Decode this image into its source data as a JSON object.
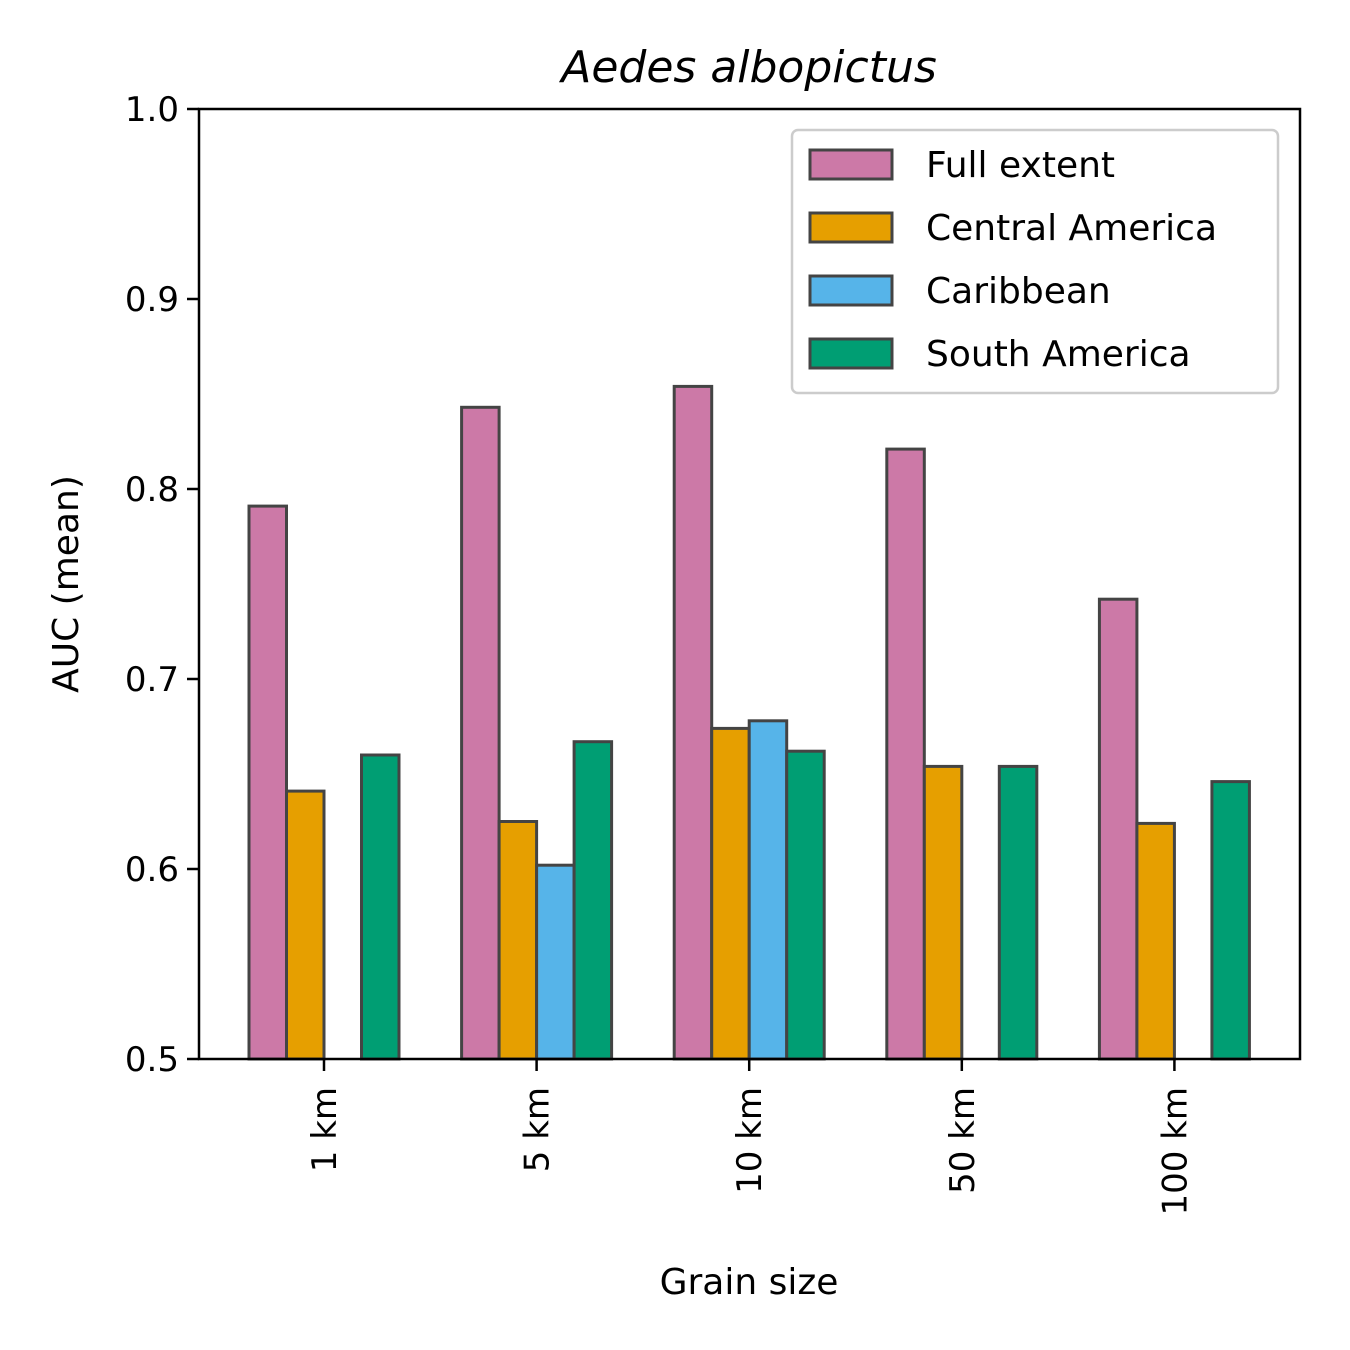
{
  "chart_data": {
    "type": "bar",
    "title": "Aedes albopictus",
    "xlabel": "Grain size",
    "ylabel": "AUC (mean)",
    "ylim": [
      0.5,
      1.0
    ],
    "yticks": [
      "0.5",
      "0.6",
      "0.7",
      "0.8",
      "0.9",
      "1.0"
    ],
    "categories": [
      "1 km",
      "5 km",
      "10 km",
      "50 km",
      "100 km"
    ],
    "legend_position": "top-right",
    "grid": false,
    "series": [
      {
        "name": "Full extent",
        "color": "#cc79a7",
        "values": [
          0.791,
          0.843,
          0.854,
          0.821,
          0.742
        ]
      },
      {
        "name": "Central America",
        "color": "#e69f00",
        "values": [
          0.641,
          0.625,
          0.674,
          0.654,
          0.624
        ]
      },
      {
        "name": "Caribbean",
        "color": "#56b4e9",
        "values": [
          null,
          0.602,
          0.678,
          null,
          null
        ]
      },
      {
        "name": "South America",
        "color": "#009e73",
        "values": [
          0.66,
          0.667,
          0.662,
          0.654,
          0.646
        ]
      }
    ]
  }
}
